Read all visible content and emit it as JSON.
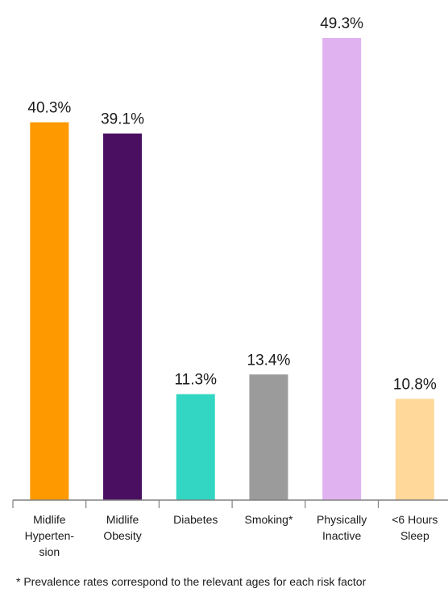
{
  "chart_data": {
    "type": "bar",
    "categories": [
      [
        "Midlife",
        "Hyperten-",
        "sion"
      ],
      [
        "Midlife",
        "Obesity"
      ],
      [
        "Diabetes"
      ],
      [
        "Smoking*"
      ],
      [
        "Physically",
        "Inactive"
      ],
      [
        "<6 Hours",
        "Sleep"
      ]
    ],
    "values": [
      40.3,
      39.1,
      11.3,
      13.4,
      49.3,
      10.8
    ],
    "value_labels": [
      "40.3%",
      "39.1%",
      "11.3%",
      "13.4%",
      "49.3%",
      "10.8%"
    ],
    "colors": [
      "#FF9900",
      "#4B0F62",
      "#33D6C2",
      "#9B9B9B",
      "#E0B3F0",
      "#FFD89A"
    ],
    "ylim": [
      0,
      49.3
    ],
    "grid": false,
    "legend": "none"
  },
  "footnote": "* Prevalence rates correspond to the relevant ages for each risk factor"
}
